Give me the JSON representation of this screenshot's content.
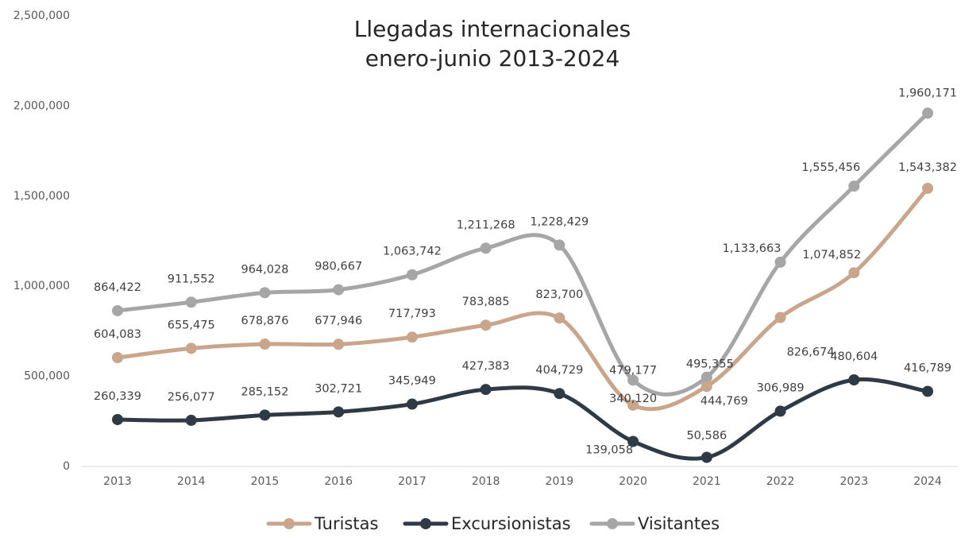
{
  "chart_data": {
    "type": "line",
    "title": "Llegadas internacionales",
    "subtitle": "enero-junio 2013-2024",
    "categories": [
      "2013",
      "2014",
      "2015",
      "2016",
      "2017",
      "2018",
      "2019",
      "2020",
      "2021",
      "2022",
      "2023",
      "2024"
    ],
    "series": [
      {
        "name": "Turistas",
        "color": "#c9a58c",
        "values": [
          604083,
          655475,
          678876,
          677946,
          717793,
          783885,
          823700,
          340120,
          444769,
          826674,
          1074852,
          1543382
        ],
        "value_labels": [
          "604,083",
          "655,475",
          "678,876",
          "677,946",
          "717,793",
          "783,885",
          "823,700",
          "340,120",
          "444,769",
          "826,674",
          "1,074,852",
          "1,543,382"
        ]
      },
      {
        "name": "Excursionistas",
        "color": "#2e3a46",
        "values": [
          260339,
          256077,
          285152,
          302721,
          345949,
          427383,
          404729,
          139058,
          50586,
          306989,
          480604,
          416789
        ],
        "value_labels": [
          "260,339",
          "256,077",
          "285,152",
          "302,721",
          "345,949",
          "427,383",
          "404,729",
          "139,058",
          "50,586",
          "306,989",
          "480,604",
          "416,789"
        ]
      },
      {
        "name": "Visitantes",
        "color": "#a6a6a6",
        "values": [
          864422,
          911552,
          964028,
          980667,
          1063742,
          1211268,
          1228429,
          479177,
          495355,
          1133663,
          1555456,
          1960171
        ],
        "value_labels": [
          "864,422",
          "911,552",
          "964,028",
          "980,667",
          "1,063,742",
          "1,211,268",
          "1,228,429",
          "479,177",
          "495,355",
          "1,133,663",
          "1,555,456",
          "1,960,171"
        ]
      }
    ],
    "ylim": [
      0,
      2500000
    ],
    "yticks": [
      0,
      {
        "value": 500000,
        "label": "500,000"
      },
      {
        "value": 1000000,
        "label": "1,000,000"
      },
      {
        "value": 1500000,
        "label": "1,500,000"
      },
      {
        "value": 2000000,
        "label": "2,000,000"
      },
      {
        "value": 2500000,
        "label": "2,500,000"
      }
    ],
    "grid": false,
    "legend": "bottom"
  }
}
